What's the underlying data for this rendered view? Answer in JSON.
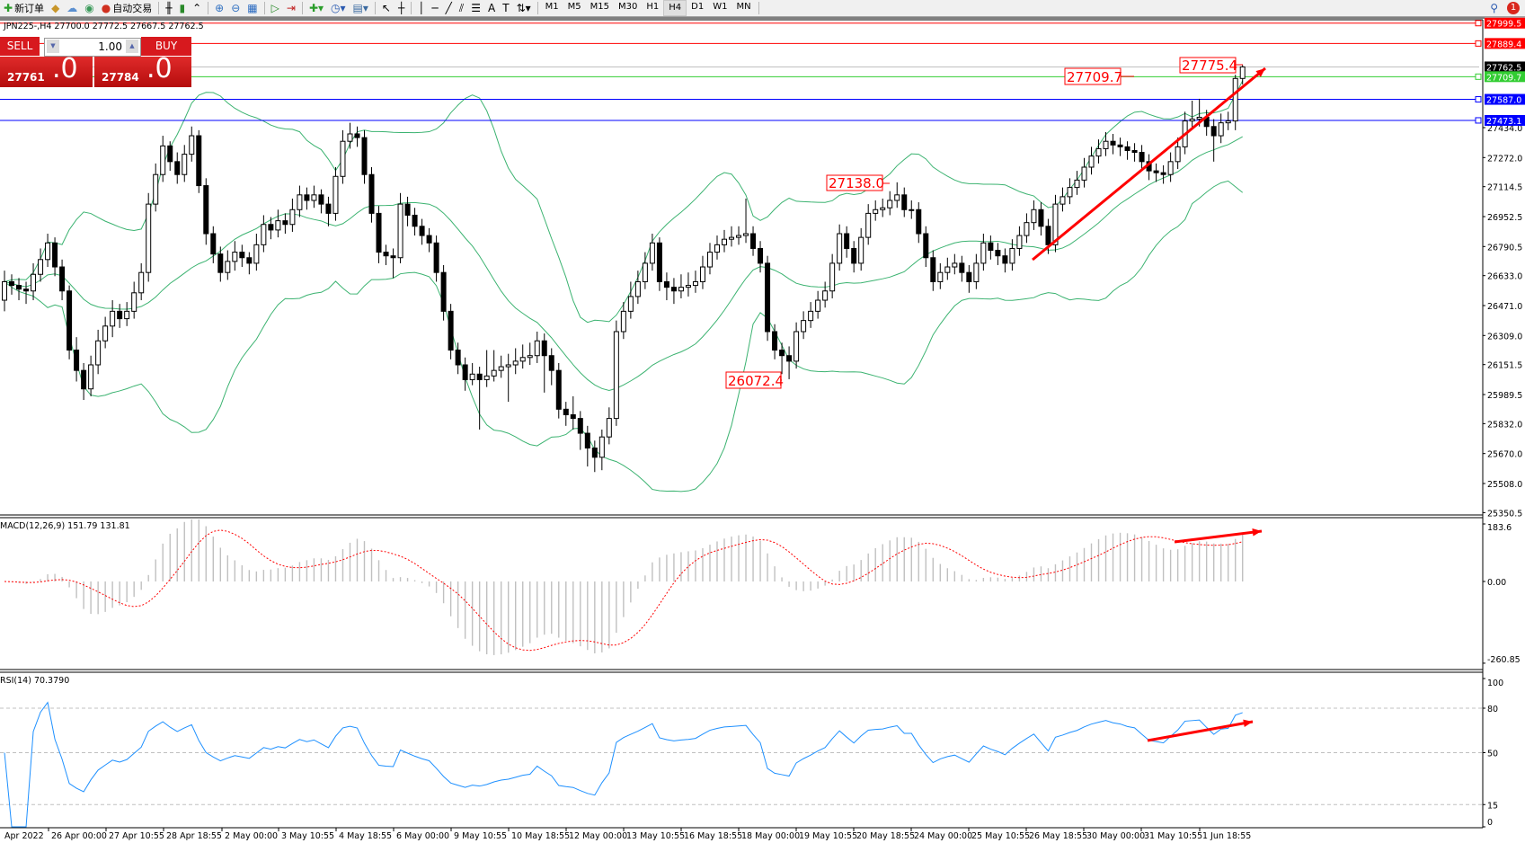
{
  "toolbar": {
    "new_order": "新订单",
    "auto_trading": "自动交易",
    "timeframes": [
      "M1",
      "M5",
      "M15",
      "M30",
      "H1",
      "H4",
      "D1",
      "W1",
      "MN"
    ],
    "active_timeframe": "H4",
    "alert_count": "1"
  },
  "chart": {
    "title": "JPN225-,H4  27700.0 27772.5 27667.5 27762.5",
    "macd_label": "MACD(12,26,9) 151.79 131.81",
    "rsi_label": "RSI(14) 70.3790"
  },
  "trade_panel": {
    "sell_label": "SELL",
    "buy_label": "BUY",
    "lot": "1.00",
    "sell_price_main": "27761",
    "sell_price_big": ".0",
    "buy_price_main": "27784",
    "buy_price_big": ".0"
  },
  "price_axis": [
    "27434.0",
    "27272.0",
    "27114.5",
    "26952.5",
    "26790.5",
    "26633.0",
    "26471.0",
    "26309.0",
    "26151.5",
    "25989.5",
    "25832.0",
    "25670.0",
    "25508.0",
    "25350.5"
  ],
  "hlines": [
    {
      "value": "27999.5",
      "color": "#ff0000"
    },
    {
      "value": "27889.4",
      "color": "#ff0000"
    },
    {
      "value": "27762.5",
      "color": "#000000",
      "line": "#c0c0c0"
    },
    {
      "value": "27709.7",
      "color": "#32cd32"
    },
    {
      "value": "27587.0",
      "color": "#0000ff"
    },
    {
      "value": "27473.1",
      "color": "#0000ff"
    }
  ],
  "annotations": [
    {
      "text": "27709.7"
    },
    {
      "text": "27775.4"
    },
    {
      "text": "27138.0"
    },
    {
      "text": "26072.4"
    }
  ],
  "macd_axis": [
    "183.6",
    "0.00",
    "-260.85"
  ],
  "rsi_axis": [
    "100",
    "80",
    "50",
    "15",
    "0"
  ],
  "time_axis": [
    "Apr 2022",
    "26 Apr 00:00",
    "27 Apr 10:55",
    "28 Apr 18:55",
    "2 May 00:00",
    "3 May 10:55",
    "4 May 18:55",
    "6 May 00:00",
    "9 May 10:55",
    "10 May 18:55",
    "12 May 00:00",
    "13 May 10:55",
    "16 May 18:55",
    "18 May 00:00",
    "19 May 10:55",
    "20 May 18:55",
    "24 May 00:00",
    "25 May 10:55",
    "26 May 18:55",
    "30 May 00:00",
    "31 May 10:55",
    "1 Jun 18:55"
  ],
  "colors": {
    "bands": "#3cb371",
    "rsi": "#1e90ff",
    "macd_hist": "#c0c0c0",
    "macd_signal": "#ff0000",
    "trend_arrow": "#ff0000"
  },
  "chart_data": {
    "type": "candlestick",
    "symbol": "JPN225-",
    "timeframe": "H4",
    "indicators": [
      "Bollinger Bands",
      "MACD(12,26,9)",
      "RSI(14)"
    ],
    "candles_ohlc": [
      [
        26500,
        26660,
        26440,
        26600
      ],
      [
        26600,
        26640,
        26530,
        26580
      ],
      [
        26580,
        26620,
        26500,
        26560
      ],
      [
        26560,
        26600,
        26480,
        26550
      ],
      [
        26550,
        26700,
        26500,
        26640
      ],
      [
        26640,
        26780,
        26600,
        26720
      ],
      [
        26720,
        26860,
        26680,
        26810
      ],
      [
        26810,
        26840,
        26630,
        26680
      ],
      [
        26680,
        26720,
        26500,
        26550
      ],
      [
        26550,
        26580,
        26180,
        26230
      ],
      [
        26230,
        26300,
        26060,
        26120
      ],
      [
        26120,
        26160,
        25960,
        26020
      ],
      [
        26020,
        26200,
        25980,
        26150
      ],
      [
        26150,
        26340,
        26100,
        26280
      ],
      [
        26280,
        26410,
        26240,
        26360
      ],
      [
        26360,
        26500,
        26300,
        26440
      ],
      [
        26440,
        26480,
        26350,
        26400
      ],
      [
        26400,
        26490,
        26360,
        26440
      ],
      [
        26440,
        26600,
        26400,
        26540
      ],
      [
        26540,
        26700,
        26500,
        26650
      ],
      [
        26650,
        27080,
        26600,
        27020
      ],
      [
        27020,
        27240,
        26980,
        27180
      ],
      [
        27180,
        27390,
        27140,
        27335
      ],
      [
        27335,
        27360,
        27200,
        27250
      ],
      [
        27250,
        27300,
        27130,
        27180
      ],
      [
        27180,
        27340,
        27140,
        27290
      ],
      [
        27290,
        27440,
        27250,
        27390
      ],
      [
        27390,
        27420,
        27080,
        27120
      ],
      [
        27120,
        27160,
        26800,
        26860
      ],
      [
        26860,
        26900,
        26700,
        26750
      ],
      [
        26750,
        26790,
        26600,
        26650
      ],
      [
        26650,
        26770,
        26610,
        26710
      ],
      [
        26710,
        26820,
        26660,
        26760
      ],
      [
        26760,
        26800,
        26680,
        26730
      ],
      [
        26730,
        26760,
        26640,
        26700
      ],
      [
        26700,
        26860,
        26660,
        26800
      ],
      [
        26800,
        26960,
        26760,
        26910
      ],
      [
        26910,
        26950,
        26830,
        26880
      ],
      [
        26880,
        26990,
        26840,
        26930
      ],
      [
        26930,
        26970,
        26860,
        26910
      ],
      [
        26910,
        27050,
        26870,
        26990
      ],
      [
        26990,
        27120,
        26950,
        27070
      ],
      [
        27070,
        27110,
        26990,
        27040
      ],
      [
        27040,
        27120,
        27000,
        27070
      ],
      [
        27070,
        27100,
        26970,
        27020
      ],
      [
        27020,
        27060,
        26900,
        26970
      ],
      [
        26970,
        27220,
        26930,
        27170
      ],
      [
        27170,
        27420,
        27130,
        27360
      ],
      [
        27360,
        27460,
        27320,
        27400
      ],
      [
        27400,
        27440,
        27330,
        27380
      ],
      [
        27380,
        27420,
        27130,
        27180
      ],
      [
        27180,
        27220,
        26920,
        26970
      ],
      [
        26970,
        27010,
        26700,
        26760
      ],
      [
        26760,
        26800,
        26690,
        26740
      ],
      [
        26740,
        26780,
        26620,
        26730
      ],
      [
        26730,
        27080,
        26700,
        27020
      ],
      [
        27020,
        27060,
        26900,
        26960
      ],
      [
        26960,
        27000,
        26850,
        26900
      ],
      [
        26900,
        26940,
        26800,
        26850
      ],
      [
        26850,
        26890,
        26760,
        26810
      ],
      [
        26810,
        26850,
        26600,
        26650
      ],
      [
        26650,
        26690,
        26390,
        26440
      ],
      [
        26440,
        26480,
        26180,
        26230
      ],
      [
        26230,
        26270,
        26100,
        26150
      ],
      [
        26150,
        26190,
        26010,
        26070
      ],
      [
        26070,
        26160,
        26040,
        26100
      ],
      [
        26100,
        26140,
        25800,
        26070
      ],
      [
        26070,
        26230,
        26030,
        26090
      ],
      [
        26090,
        26230,
        26060,
        26120
      ],
      [
        26120,
        26200,
        26080,
        26140
      ],
      [
        26140,
        26210,
        25950,
        26150
      ],
      [
        26150,
        26240,
        26100,
        26170
      ],
      [
        26170,
        26260,
        26130,
        26190
      ],
      [
        26190,
        26270,
        26150,
        26200
      ],
      [
        26200,
        26330,
        26160,
        26280
      ],
      [
        26280,
        26320,
        26000,
        26200
      ],
      [
        26200,
        26240,
        26040,
        26120
      ],
      [
        26120,
        26160,
        25860,
        25910
      ],
      [
        25910,
        25950,
        25820,
        25880
      ],
      [
        25880,
        25980,
        25800,
        25860
      ],
      [
        25860,
        25900,
        25690,
        25780
      ],
      [
        25780,
        25820,
        25600,
        25700
      ],
      [
        25700,
        25740,
        25570,
        25650
      ],
      [
        25650,
        25800,
        25580,
        25760
      ],
      [
        25760,
        25920,
        25720,
        25860
      ],
      [
        25860,
        26390,
        25820,
        26330
      ],
      [
        26330,
        26490,
        26290,
        26440
      ],
      [
        26440,
        26600,
        26400,
        26520
      ],
      [
        26520,
        26660,
        26480,
        26600
      ],
      [
        26600,
        26760,
        26560,
        26700
      ],
      [
        26700,
        26860,
        26660,
        26810
      ],
      [
        26810,
        26840,
        26550,
        26600
      ],
      [
        26600,
        26650,
        26500,
        26570
      ],
      [
        26570,
        26620,
        26480,
        26550
      ],
      [
        26550,
        26640,
        26510,
        26570
      ],
      [
        26570,
        26650,
        26520,
        26580
      ],
      [
        26580,
        26660,
        26540,
        26600
      ],
      [
        26600,
        26740,
        26560,
        26680
      ],
      [
        26680,
        26810,
        26640,
        26760
      ],
      [
        26760,
        26850,
        26720,
        26800
      ],
      [
        26800,
        26880,
        26760,
        26830
      ],
      [
        26830,
        26900,
        26790,
        26840
      ],
      [
        26840,
        26900,
        26800,
        26850
      ],
      [
        26850,
        27050,
        26810,
        26860
      ],
      [
        26860,
        26900,
        26740,
        26780
      ],
      [
        26780,
        26820,
        26650,
        26700
      ],
      [
        26700,
        26740,
        26280,
        26330
      ],
      [
        26330,
        26370,
        26180,
        26230
      ],
      [
        26230,
        26270,
        26100,
        26200
      ],
      [
        26200,
        26250,
        26072.4,
        26170
      ],
      [
        26170,
        26380,
        26130,
        26330
      ],
      [
        26330,
        26440,
        26290,
        26390
      ],
      [
        26390,
        26490,
        26350,
        26440
      ],
      [
        26440,
        26550,
        26400,
        26500
      ],
      [
        26500,
        26600,
        26460,
        26550
      ],
      [
        26550,
        26750,
        26510,
        26700
      ],
      [
        26700,
        26910,
        26660,
        26860
      ],
      [
        26860,
        26900,
        26730,
        26780
      ],
      [
        26780,
        26820,
        26650,
        26700
      ],
      [
        26700,
        26890,
        26660,
        26840
      ],
      [
        26840,
        27020,
        26800,
        26970
      ],
      [
        26970,
        27040,
        26930,
        26990
      ],
      [
        26990,
        27050,
        26950,
        27000
      ],
      [
        27000,
        27090,
        26960,
        27040
      ],
      [
        27040,
        27138,
        27000,
        27070
      ],
      [
        27070,
        27110,
        26950,
        26990
      ],
      [
        26990,
        27040,
        26940,
        26990
      ],
      [
        26990,
        27030,
        26810,
        26860
      ],
      [
        26860,
        26900,
        26680,
        26730
      ],
      [
        26730,
        26770,
        26550,
        26600
      ],
      [
        26600,
        26700,
        26560,
        26650
      ],
      [
        26650,
        26730,
        26610,
        26680
      ],
      [
        26680,
        26750,
        26640,
        26700
      ],
      [
        26700,
        26740,
        26600,
        26650
      ],
      [
        26650,
        26690,
        26540,
        26600
      ],
      [
        26600,
        26750,
        26560,
        26700
      ],
      [
        26700,
        26860,
        26660,
        26810
      ],
      [
        26810,
        26850,
        26720,
        26770
      ],
      [
        26770,
        26810,
        26690,
        26740
      ],
      [
        26740,
        26780,
        26650,
        26700
      ],
      [
        26700,
        26830,
        26660,
        26780
      ],
      [
        26780,
        26900,
        26740,
        26850
      ],
      [
        26850,
        26970,
        26810,
        26920
      ],
      [
        26920,
        27040,
        26880,
        26990
      ],
      [
        26990,
        27030,
        26850,
        26900
      ],
      [
        26900,
        26940,
        26750,
        26800
      ],
      [
        26800,
        27070,
        26760,
        27020
      ],
      [
        27020,
        27110,
        26980,
        27060
      ],
      [
        27060,
        27160,
        27020,
        27110
      ],
      [
        27110,
        27200,
        27070,
        27150
      ],
      [
        27150,
        27270,
        27110,
        27220
      ],
      [
        27220,
        27330,
        27180,
        27280
      ],
      [
        27280,
        27370,
        27240,
        27320
      ],
      [
        27320,
        27410,
        27280,
        27360
      ],
      [
        27360,
        27400,
        27290,
        27340
      ],
      [
        27340,
        27380,
        27280,
        27330
      ],
      [
        27330,
        27360,
        27260,
        27310
      ],
      [
        27310,
        27350,
        27250,
        27300
      ],
      [
        27300,
        27340,
        27200,
        27250
      ],
      [
        27250,
        27290,
        27150,
        27200
      ],
      [
        27200,
        27240,
        27140,
        27190
      ],
      [
        27190,
        27230,
        27130,
        27180
      ],
      [
        27180,
        27300,
        27140,
        27250
      ],
      [
        27250,
        27380,
        27210,
        27330
      ],
      [
        27330,
        27520,
        27290,
        27470
      ],
      [
        27470,
        27580,
        27430,
        27480
      ],
      [
        27480,
        27590,
        27440,
        27490
      ],
      [
        27490,
        27530,
        27390,
        27440
      ],
      [
        27440,
        27480,
        27250,
        27390
      ],
      [
        27390,
        27510,
        27350,
        27460
      ],
      [
        27460,
        27520,
        27420,
        27470
      ],
      [
        27470,
        27720,
        27420,
        27700
      ],
      [
        27700,
        27772.5,
        27667.5,
        27762.5
      ]
    ],
    "price_range": [
      25350.5,
      27999.5
    ],
    "macd_range": [
      -260.85,
      183.6
    ],
    "rsi_range": [
      0,
      100
    ],
    "rsi_levels": [
      80,
      50,
      15
    ]
  }
}
